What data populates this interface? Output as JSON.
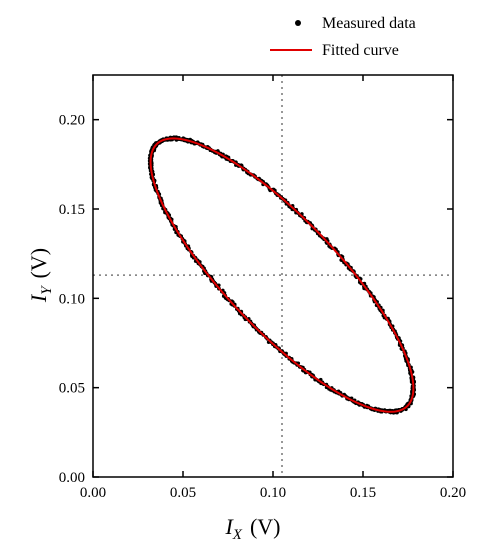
{
  "chart_data": {
    "type": "scatter",
    "xlabel_main": "I",
    "xlabel_sub": "X",
    "xlabel_unit": "(V)",
    "ylabel_main": "I",
    "ylabel_sub": "Y",
    "ylabel_unit": "(V)",
    "xlim": [
      0.0,
      0.2
    ],
    "ylim": [
      0.0,
      0.225
    ],
    "xticks": [
      "0.00",
      "0.05",
      "0.10",
      "0.15",
      "0.20"
    ],
    "yticks": [
      "0.00",
      "0.05",
      "0.10",
      "0.15",
      "0.20"
    ],
    "xtick_values": [
      0.0,
      0.05,
      0.1,
      0.15,
      0.2
    ],
    "ytick_values": [
      0.0,
      0.05,
      0.1,
      0.15,
      0.2
    ],
    "reference_lines": {
      "x": 0.105,
      "y": 0.113
    },
    "legend_position": "top-right",
    "series": [
      {
        "name": "Measured data",
        "style": "points",
        "color": "#000000",
        "ellipse": {
          "center_x": 0.105,
          "center_y": 0.113,
          "x_extremes": [
            0.032,
            0.178
          ],
          "y_extremes": [
            0.037,
            0.19
          ],
          "x_at_top": 0.064,
          "x_at_bottom": 0.146
        }
      },
      {
        "name": "Fitted curve",
        "style": "line",
        "color": "#e00000",
        "ellipse": {
          "center_x": 0.105,
          "center_y": 0.113,
          "x_extremes": [
            0.032,
            0.178
          ],
          "y_extremes": [
            0.037,
            0.19
          ],
          "x_at_top": 0.064,
          "x_at_bottom": 0.146
        }
      }
    ]
  }
}
